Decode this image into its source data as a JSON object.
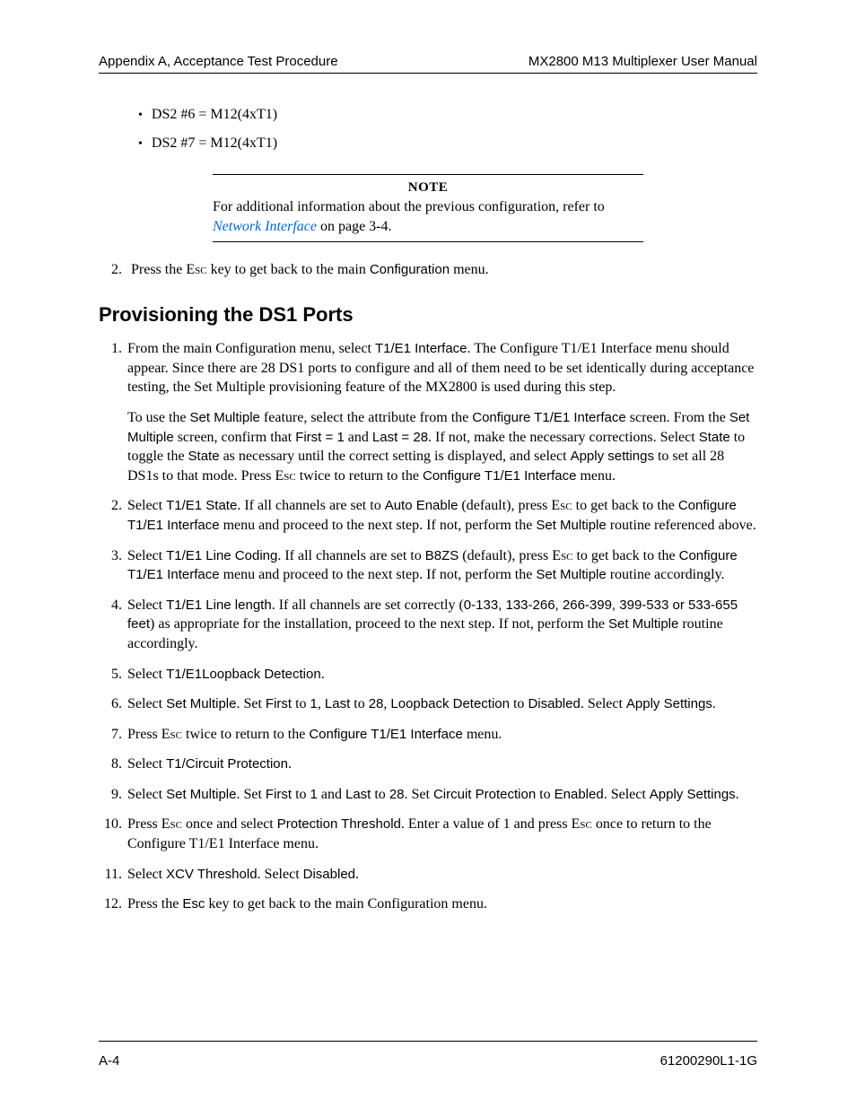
{
  "colors": {
    "text": "#000000",
    "link": "#0066cc",
    "rule": "#000000",
    "background": "#ffffff"
  },
  "fonts": {
    "body": "Times New Roman",
    "sans": "Arial",
    "body_size_pt": 12,
    "heading_size_pt": 16
  },
  "header": {
    "left": "Appendix A, Acceptance Test Procedure",
    "right": "MX2800 M13 Multiplexer User Manual"
  },
  "bullets": [
    "DS2 #6 = M12(4xT1)",
    "DS2 #7 = M12(4xT1)"
  ],
  "note": {
    "title": "NOTE",
    "pre": "For additional information about the previous configuration, refer to ",
    "link": "Network Interface",
    "post": " on page 3-4."
  },
  "continued_step": {
    "num": "2.",
    "pre": "Press the ",
    "esc": "Esc",
    "mid": " key to get back to the main ",
    "menu": "Configuration",
    "post": " menu."
  },
  "heading": "Provisioning the DS1 Ports",
  "steps": {
    "s1": {
      "p1_a": "From the main Configuration menu, select ",
      "p1_b": "T1/E1 Interface",
      "p1_c": ". The Configure T1/E1 Interface menu should appear. Since there are 28 DS1 ports to configure and all of them need to be set identically during acceptance testing, the Set Multiple provisioning feature of the MX2800 is used during this step.",
      "p2_a": "To use the ",
      "p2_b": "Set Multiple",
      "p2_c": " feature, select the attribute from the ",
      "p2_d": "Configure T1/E1 Interface",
      "p2_e": " screen. From the ",
      "p2_f": "Set Multiple",
      "p2_g": " screen, confirm that ",
      "p2_h": "First = 1",
      "p2_i": " and ",
      "p2_j": "Last = 28",
      "p2_k": ". If not, make the necessary corrections. Select ",
      "p2_l": "State",
      "p2_m": " to toggle the ",
      "p2_n": "State",
      "p2_o": " as necessary until the correct setting is displayed, and select ",
      "p2_p": "Apply settings",
      "p2_q": " to set all 28 DS1s to that mode. Press ",
      "p2_r": "Esc",
      "p2_s": " twice to return to the ",
      "p2_t": "Configure T1/E1 Interface",
      "p2_u": " menu."
    },
    "s2": {
      "a": "Select ",
      "b": "T1/E1 State",
      "c": ". If all channels are set to ",
      "d": "Auto Enable",
      "e": " (default), press ",
      "f": "Esc",
      "g": " to get back to the ",
      "h": "Configure T1/E1 Interface",
      "i": " menu and proceed to the next step. If not, perform the ",
      "j": "Set Multiple",
      "k": " routine referenced above."
    },
    "s3": {
      "a": "Select ",
      "b": "T1/E1 Line Coding",
      "c": ". If all channels are set to ",
      "d": "B8ZS",
      "e": " (default), press ",
      "f": "Esc",
      "g": " to get back to the ",
      "h": "Configure T1/E1 Interface",
      "i": " menu and proceed to the next step. If not, perform the ",
      "j": "Set Multiple",
      "k": " routine accordingly."
    },
    "s4": {
      "a": "Select ",
      "b": "T1/E1 Line length",
      "c": ". If all channels are set correctly (",
      "d": "0-133, 133-266, 266-399, 399-533 or 533-655 feet",
      "e": ") as appropriate for the installation, proceed to the next step. If not, perform the ",
      "f": "Set Multiple",
      "g": " routine accordingly."
    },
    "s5": {
      "a": "Select ",
      "b": "T1/E1Loopback Detection",
      "c": "."
    },
    "s6": {
      "a": "Select ",
      "b": "Set Multiple",
      "c": ". Set ",
      "d": "First",
      "e": " to ",
      "f": "1",
      "g": ", ",
      "h": "Last",
      "i": " to ",
      "j": "28",
      "k": ", ",
      "l": "Loopback Detection",
      "m": " to ",
      "n": "Disabled",
      "o": ". Select ",
      "p": "Apply Settings",
      "q": "."
    },
    "s7": {
      "a": "Press ",
      "b": "Esc",
      "c": " twice to return to the ",
      "d": "Configure T1/E1 Interface",
      "e": " menu."
    },
    "s8": {
      "a": "Select ",
      "b": "T1/Circuit Protection",
      "c": "."
    },
    "s9": {
      "a": "Select ",
      "b": "Set Multiple",
      "c": ". Set ",
      "d": "First",
      "e": " to ",
      "f": "1",
      "g": " and ",
      "h": "Last",
      "i": " to ",
      "j": "28",
      "k": ". Set ",
      "l": "Circuit Protection",
      "m": " to ",
      "n": "Enabled",
      "o": ". Select ",
      "p": "Apply Settings",
      "q": "."
    },
    "s10": {
      "a": "Press ",
      "b": "Esc",
      "c": " once and select ",
      "d": "Protection Threshold",
      "e": ". Enter a value of 1 and press ",
      "f": "Esc",
      "g": " once to return to the Configure T1/E1 Interface menu."
    },
    "s11": {
      "a": "Select ",
      "b": "XCV Threshold",
      "c": ". Select ",
      "d": "Disabled",
      "e": "."
    },
    "s12": {
      "a": "Press the ",
      "b": "Esc",
      "c": " key to get back to the main Configuration menu."
    }
  },
  "footer": {
    "left": "A-4",
    "right": "61200290L1-1G"
  }
}
